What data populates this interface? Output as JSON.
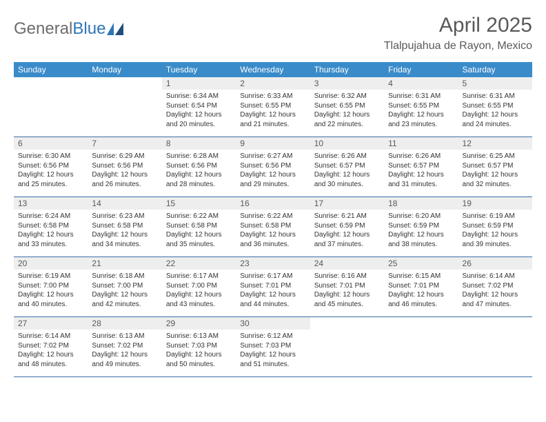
{
  "colors": {
    "header_bg": "#3a8bc9",
    "header_text": "#ffffff",
    "daynum_bg": "#eeeeee",
    "daynum_text": "#595959",
    "body_text": "#333333",
    "row_border": "#3a6ea5",
    "title_text": "#595959",
    "logo_grey": "#6c6c6c",
    "logo_blue": "#2e75b6",
    "page_bg": "#ffffff"
  },
  "logo": {
    "part1": "General",
    "part2": "Blue"
  },
  "title": "April 2025",
  "location": "Tlalpujahua de Rayon, Mexico",
  "day_headers": [
    "Sunday",
    "Monday",
    "Tuesday",
    "Wednesday",
    "Thursday",
    "Friday",
    "Saturday"
  ],
  "weeks": [
    [
      null,
      null,
      {
        "n": "1",
        "sr": "Sunrise: 6:34 AM",
        "ss": "Sunset: 6:54 PM",
        "dl1": "Daylight: 12 hours",
        "dl2": "and 20 minutes."
      },
      {
        "n": "2",
        "sr": "Sunrise: 6:33 AM",
        "ss": "Sunset: 6:55 PM",
        "dl1": "Daylight: 12 hours",
        "dl2": "and 21 minutes."
      },
      {
        "n": "3",
        "sr": "Sunrise: 6:32 AM",
        "ss": "Sunset: 6:55 PM",
        "dl1": "Daylight: 12 hours",
        "dl2": "and 22 minutes."
      },
      {
        "n": "4",
        "sr": "Sunrise: 6:31 AM",
        "ss": "Sunset: 6:55 PM",
        "dl1": "Daylight: 12 hours",
        "dl2": "and 23 minutes."
      },
      {
        "n": "5",
        "sr": "Sunrise: 6:31 AM",
        "ss": "Sunset: 6:55 PM",
        "dl1": "Daylight: 12 hours",
        "dl2": "and 24 minutes."
      }
    ],
    [
      {
        "n": "6",
        "sr": "Sunrise: 6:30 AM",
        "ss": "Sunset: 6:56 PM",
        "dl1": "Daylight: 12 hours",
        "dl2": "and 25 minutes."
      },
      {
        "n": "7",
        "sr": "Sunrise: 6:29 AM",
        "ss": "Sunset: 6:56 PM",
        "dl1": "Daylight: 12 hours",
        "dl2": "and 26 minutes."
      },
      {
        "n": "8",
        "sr": "Sunrise: 6:28 AM",
        "ss": "Sunset: 6:56 PM",
        "dl1": "Daylight: 12 hours",
        "dl2": "and 28 minutes."
      },
      {
        "n": "9",
        "sr": "Sunrise: 6:27 AM",
        "ss": "Sunset: 6:56 PM",
        "dl1": "Daylight: 12 hours",
        "dl2": "and 29 minutes."
      },
      {
        "n": "10",
        "sr": "Sunrise: 6:26 AM",
        "ss": "Sunset: 6:57 PM",
        "dl1": "Daylight: 12 hours",
        "dl2": "and 30 minutes."
      },
      {
        "n": "11",
        "sr": "Sunrise: 6:26 AM",
        "ss": "Sunset: 6:57 PM",
        "dl1": "Daylight: 12 hours",
        "dl2": "and 31 minutes."
      },
      {
        "n": "12",
        "sr": "Sunrise: 6:25 AM",
        "ss": "Sunset: 6:57 PM",
        "dl1": "Daylight: 12 hours",
        "dl2": "and 32 minutes."
      }
    ],
    [
      {
        "n": "13",
        "sr": "Sunrise: 6:24 AM",
        "ss": "Sunset: 6:58 PM",
        "dl1": "Daylight: 12 hours",
        "dl2": "and 33 minutes."
      },
      {
        "n": "14",
        "sr": "Sunrise: 6:23 AM",
        "ss": "Sunset: 6:58 PM",
        "dl1": "Daylight: 12 hours",
        "dl2": "and 34 minutes."
      },
      {
        "n": "15",
        "sr": "Sunrise: 6:22 AM",
        "ss": "Sunset: 6:58 PM",
        "dl1": "Daylight: 12 hours",
        "dl2": "and 35 minutes."
      },
      {
        "n": "16",
        "sr": "Sunrise: 6:22 AM",
        "ss": "Sunset: 6:58 PM",
        "dl1": "Daylight: 12 hours",
        "dl2": "and 36 minutes."
      },
      {
        "n": "17",
        "sr": "Sunrise: 6:21 AM",
        "ss": "Sunset: 6:59 PM",
        "dl1": "Daylight: 12 hours",
        "dl2": "and 37 minutes."
      },
      {
        "n": "18",
        "sr": "Sunrise: 6:20 AM",
        "ss": "Sunset: 6:59 PM",
        "dl1": "Daylight: 12 hours",
        "dl2": "and 38 minutes."
      },
      {
        "n": "19",
        "sr": "Sunrise: 6:19 AM",
        "ss": "Sunset: 6:59 PM",
        "dl1": "Daylight: 12 hours",
        "dl2": "and 39 minutes."
      }
    ],
    [
      {
        "n": "20",
        "sr": "Sunrise: 6:19 AM",
        "ss": "Sunset: 7:00 PM",
        "dl1": "Daylight: 12 hours",
        "dl2": "and 40 minutes."
      },
      {
        "n": "21",
        "sr": "Sunrise: 6:18 AM",
        "ss": "Sunset: 7:00 PM",
        "dl1": "Daylight: 12 hours",
        "dl2": "and 42 minutes."
      },
      {
        "n": "22",
        "sr": "Sunrise: 6:17 AM",
        "ss": "Sunset: 7:00 PM",
        "dl1": "Daylight: 12 hours",
        "dl2": "and 43 minutes."
      },
      {
        "n": "23",
        "sr": "Sunrise: 6:17 AM",
        "ss": "Sunset: 7:01 PM",
        "dl1": "Daylight: 12 hours",
        "dl2": "and 44 minutes."
      },
      {
        "n": "24",
        "sr": "Sunrise: 6:16 AM",
        "ss": "Sunset: 7:01 PM",
        "dl1": "Daylight: 12 hours",
        "dl2": "and 45 minutes."
      },
      {
        "n": "25",
        "sr": "Sunrise: 6:15 AM",
        "ss": "Sunset: 7:01 PM",
        "dl1": "Daylight: 12 hours",
        "dl2": "and 46 minutes."
      },
      {
        "n": "26",
        "sr": "Sunrise: 6:14 AM",
        "ss": "Sunset: 7:02 PM",
        "dl1": "Daylight: 12 hours",
        "dl2": "and 47 minutes."
      }
    ],
    [
      {
        "n": "27",
        "sr": "Sunrise: 6:14 AM",
        "ss": "Sunset: 7:02 PM",
        "dl1": "Daylight: 12 hours",
        "dl2": "and 48 minutes."
      },
      {
        "n": "28",
        "sr": "Sunrise: 6:13 AM",
        "ss": "Sunset: 7:02 PM",
        "dl1": "Daylight: 12 hours",
        "dl2": "and 49 minutes."
      },
      {
        "n": "29",
        "sr": "Sunrise: 6:13 AM",
        "ss": "Sunset: 7:03 PM",
        "dl1": "Daylight: 12 hours",
        "dl2": "and 50 minutes."
      },
      {
        "n": "30",
        "sr": "Sunrise: 6:12 AM",
        "ss": "Sunset: 7:03 PM",
        "dl1": "Daylight: 12 hours",
        "dl2": "and 51 minutes."
      },
      null,
      null,
      null
    ]
  ]
}
